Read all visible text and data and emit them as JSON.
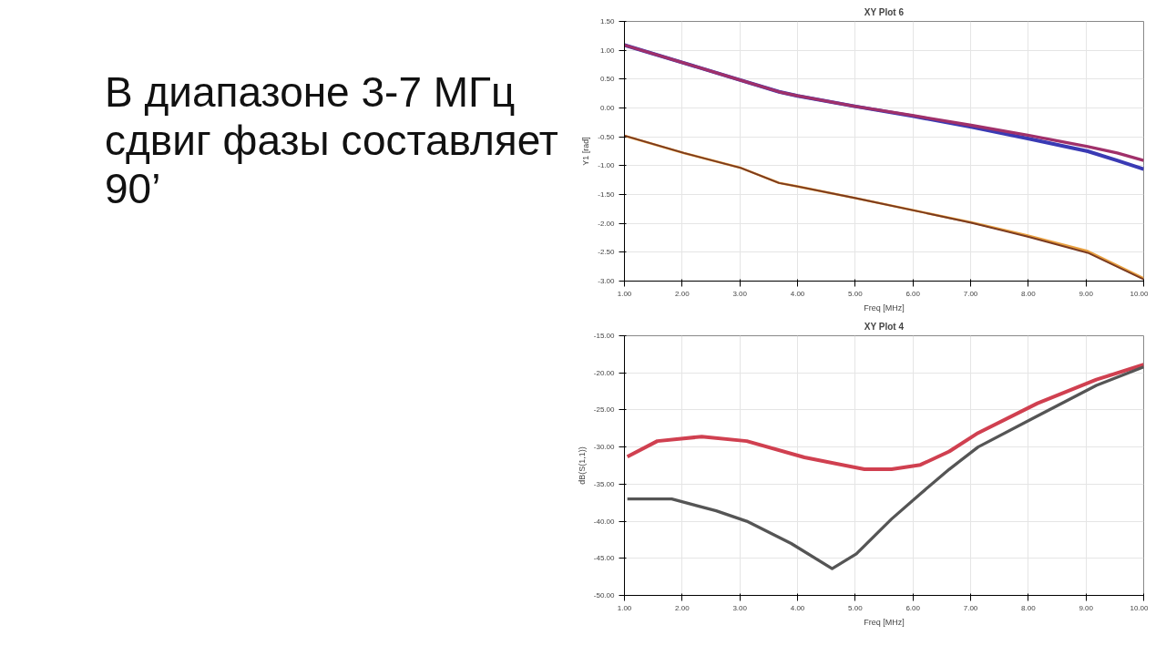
{
  "chart_data": [
    {
      "type": "line",
      "title": "XY Plot 6",
      "xlabel": "Freq [MHz]",
      "ylabel": "Y1 [rad]",
      "annotations": [
        "В диапазоне 3-7 МГц сдвиг фазы составляет 90’"
      ],
      "grid": true,
      "xlim": [
        1,
        10
      ],
      "xticks": [
        {
          "value": 1,
          "label": "1.00"
        },
        {
          "value": 2,
          "label": "2.00"
        },
        {
          "value": 3,
          "label": "3.00"
        },
        {
          "value": 4,
          "label": "4.00"
        },
        {
          "value": 5,
          "label": "5.00"
        },
        {
          "value": 6,
          "label": "6.00"
        },
        {
          "value": 7,
          "label": "7.00"
        },
        {
          "value": 8,
          "label": "8.00"
        },
        {
          "value": 9,
          "label": "9.00"
        },
        {
          "value": 10,
          "label": "10.00"
        }
      ],
      "ylim": [
        -3,
        1.5
      ],
      "yticks": [
        {
          "value": 1.5,
          "label": "1.50"
        },
        {
          "value": 1,
          "label": "1.00"
        },
        {
          "value": 0.5,
          "label": "0.50"
        },
        {
          "value": 0,
          "label": "0.00"
        },
        {
          "value": -0.5,
          "label": "-0.50"
        },
        {
          "value": -1,
          "label": "-1.00"
        },
        {
          "value": -1.5,
          "label": "-1.50"
        },
        {
          "value": -2,
          "label": "-2.00"
        },
        {
          "value": -2.5,
          "label": "-2.50"
        },
        {
          "value": -3,
          "label": "-3.00"
        }
      ],
      "series": [
        {
          "color": "#3a3ab4",
          "x": [
            1,
            2.03,
            3.02,
            3.68,
            4,
            4.99,
            5.99,
            7.01,
            7.99,
            9.03,
            9.54,
            10
          ],
          "values": [
            1.09,
            0.78,
            0.48,
            0.28,
            0.21,
            0.03,
            -0.14,
            -0.33,
            -0.53,
            -0.75,
            -0.91,
            -1.06
          ]
        },
        {
          "color": "#a0306a",
          "x": [
            1,
            2.03,
            3.02,
            3.68,
            4,
            4.99,
            5.99,
            7.01,
            7.99,
            9.03,
            9.54,
            10
          ],
          "values": [
            1.09,
            0.78,
            0.48,
            0.28,
            0.21,
            0.03,
            -0.13,
            -0.3,
            -0.47,
            -0.67,
            -0.78,
            -0.91
          ]
        },
        {
          "color": "#e8a040",
          "x": [
            1,
            2.03,
            3.02,
            3.68,
            4,
            4.99,
            5.99,
            7.01,
            7.99,
            9.03,
            10
          ],
          "values": [
            -0.48,
            -0.78,
            -1.04,
            -1.3,
            -1.36,
            -1.56,
            -1.77,
            -1.98,
            -2.21,
            -2.48,
            -2.95
          ]
        },
        {
          "color": "#7a3a20",
          "x": [
            1,
            2.03,
            3.02,
            3.68,
            4,
            4.99,
            5.99,
            7.01,
            7.99,
            9.03,
            10
          ],
          "values": [
            -0.48,
            -0.78,
            -1.04,
            -1.3,
            -1.36,
            -1.56,
            -1.77,
            -1.99,
            -2.23,
            -2.51,
            -2.97
          ]
        }
      ]
    },
    {
      "type": "line",
      "title": "XY Plot 4",
      "xlabel": "Freq [MHz]",
      "ylabel": "dB(S(1,1))",
      "grid": true,
      "xlim": [
        1,
        10
      ],
      "xticks": [
        {
          "value": 1,
          "label": "1.00"
        },
        {
          "value": 2,
          "label": "2.00"
        },
        {
          "value": 3,
          "label": "3.00"
        },
        {
          "value": 4,
          "label": "4.00"
        },
        {
          "value": 5,
          "label": "5.00"
        },
        {
          "value": 6,
          "label": "6.00"
        },
        {
          "value": 7,
          "label": "7.00"
        },
        {
          "value": 8,
          "label": "8.00"
        },
        {
          "value": 9,
          "label": "9.00"
        },
        {
          "value": 10,
          "label": "10.00"
        }
      ],
      "ylim": [
        -50,
        -15
      ],
      "yticks": [
        {
          "value": -15,
          "label": "-15.00"
        },
        {
          "value": -20,
          "label": "-20.00"
        },
        {
          "value": -25,
          "label": "-25.00"
        },
        {
          "value": -30,
          "label": "-30.00"
        },
        {
          "value": -35,
          "label": "-35.00"
        },
        {
          "value": -40,
          "label": "-40.00"
        },
        {
          "value": -45,
          "label": "-45.00"
        },
        {
          "value": -50,
          "label": "-50.00"
        }
      ],
      "series": [
        {
          "color": "#d04050",
          "x": [
            1.05,
            1.57,
            2.34,
            3.12,
            4.12,
            5.16,
            5.63,
            6.13,
            6.63,
            7.13,
            8.16,
            9.18,
            10
          ],
          "values": [
            -31.3,
            -29.2,
            -28.6,
            -29.2,
            -31.4,
            -33,
            -33,
            -32.4,
            -30.6,
            -28.1,
            -24.1,
            -20.9,
            -18.9
          ]
        },
        {
          "color": "#555555",
          "x": [
            1.05,
            1.82,
            2.59,
            3.12,
            3.89,
            4.6,
            5.02,
            5.63,
            6.13,
            6.63,
            7.13,
            8.16,
            9.18,
            10
          ],
          "values": [
            -37,
            -37,
            -38.6,
            -40,
            -43,
            -46.4,
            -44.4,
            -39.7,
            -36.3,
            -33,
            -30,
            -25.8,
            -21.7,
            -19.2
          ]
        }
      ]
    }
  ]
}
